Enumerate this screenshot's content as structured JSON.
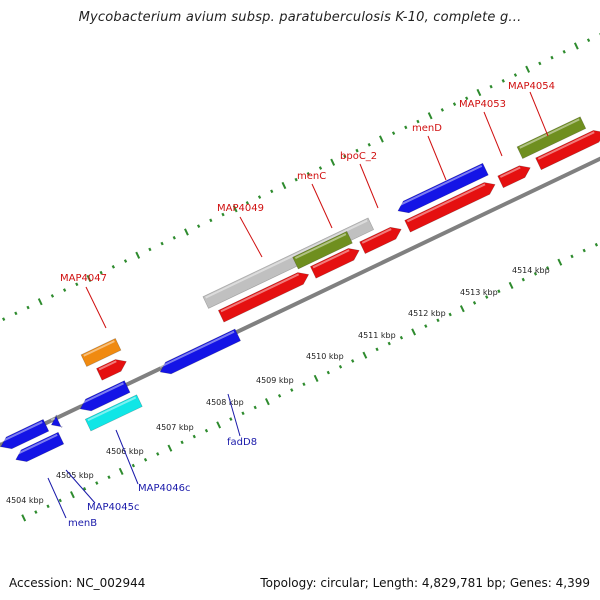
{
  "title": "Mycobacterium avium subsp. paratuberculosis K-10, complete g...",
  "footer": {
    "accession": "Accession: NC_002944",
    "meta": "Topology: circular; Length: 4,829,781 bp; Genes: 4,399"
  },
  "colors": {
    "forward_cds": "#e51010",
    "reverse_cds": "#1414e6",
    "rrna": "#c0c0c0",
    "olive": "#6f8f1f",
    "orange": "#f08a10",
    "cyan": "#10e6e6",
    "backbone": "#808080",
    "tick": "#2e8b2e",
    "label_red": "#d01010",
    "label_blue": "#1a1aaa"
  },
  "kbp_ticks": [
    "4504 kbp",
    "4505 kbp",
    "4506 kbp",
    "4507 kbp",
    "4508 kbp",
    "4509 kbp",
    "4510 kbp",
    "4511 kbp",
    "4512 kbp",
    "4513 kbp",
    "4514 kbp"
  ],
  "upper_labels": [
    "MAP4047",
    "MAP4049",
    "menC",
    "bpoC_2",
    "menD",
    "MAP4053",
    "MAP4054"
  ],
  "lower_labels": [
    "menB",
    "MAP4045c",
    "MAP4046c",
    "fadD8"
  ],
  "icons": [
    "forward-arrow-feature",
    "reverse-arrow-feature"
  ]
}
